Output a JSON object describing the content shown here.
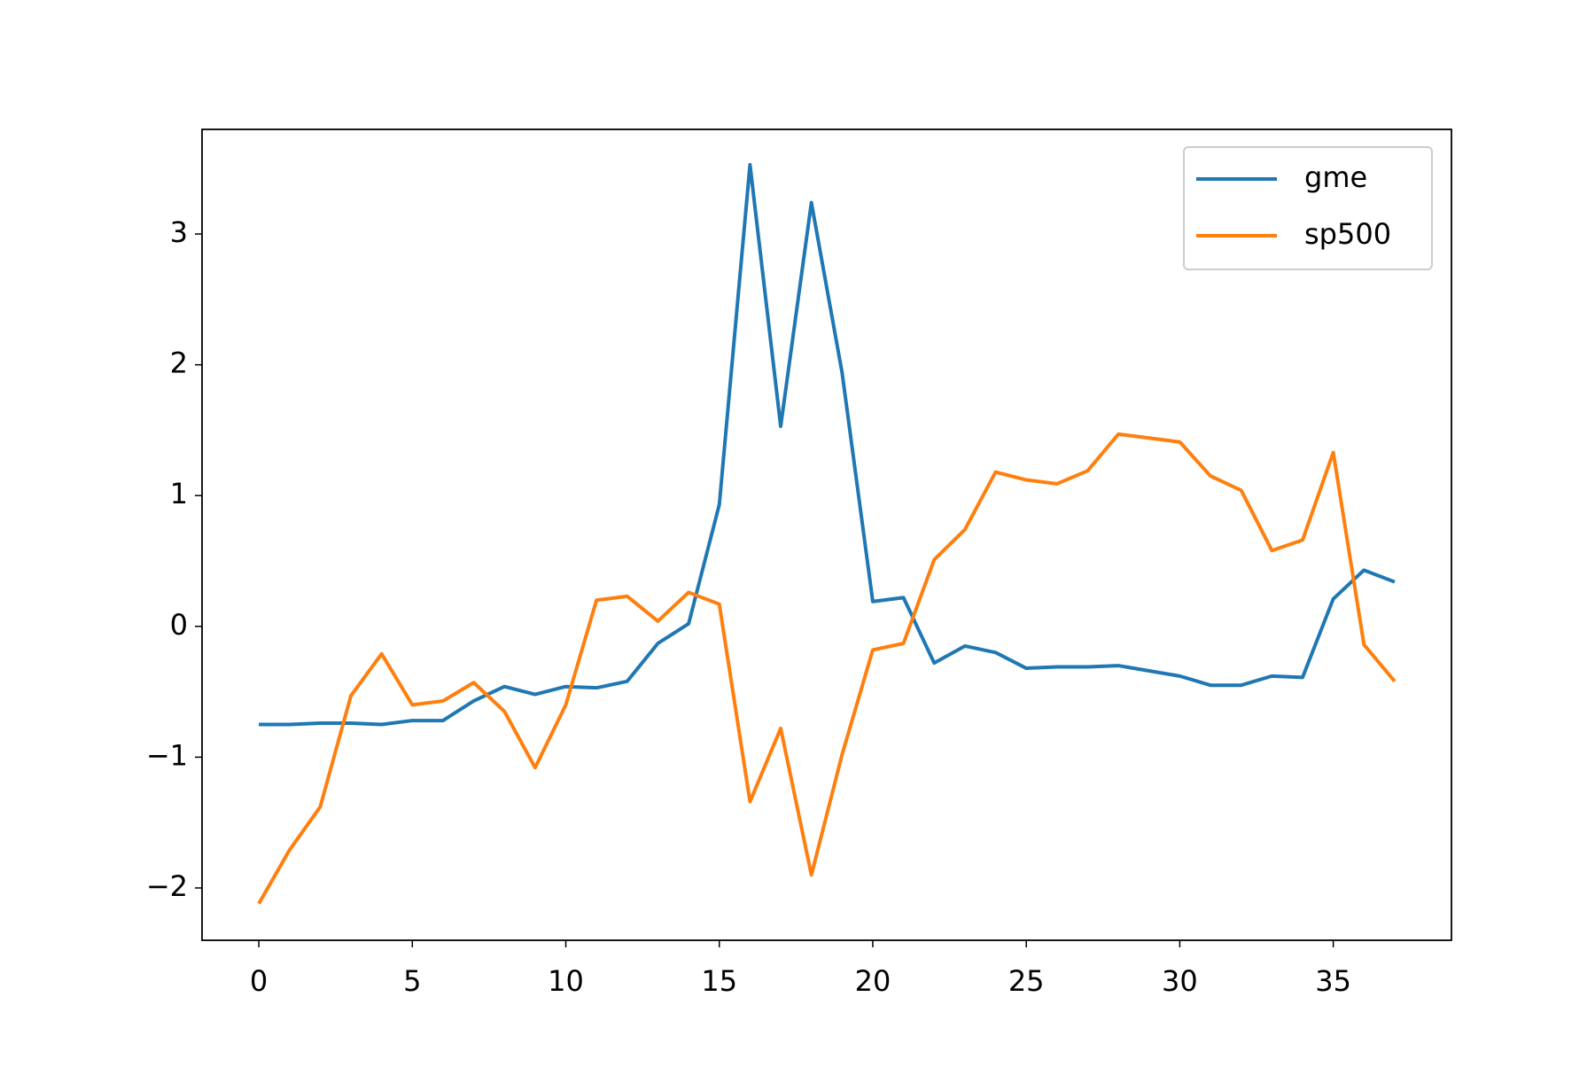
{
  "chart_data": {
    "type": "line",
    "x": [
      0,
      1,
      2,
      3,
      4,
      5,
      6,
      7,
      8,
      9,
      10,
      11,
      12,
      13,
      14,
      15,
      16,
      17,
      18,
      19,
      20,
      21,
      22,
      23,
      24,
      25,
      26,
      27,
      28,
      29,
      30,
      31,
      32,
      33,
      34,
      35,
      36,
      37
    ],
    "series": [
      {
        "name": "gme",
        "color": "#1f77b4",
        "values": [
          -0.75,
          -0.75,
          -0.74,
          -0.74,
          -0.75,
          -0.72,
          -0.72,
          -0.57,
          -0.46,
          -0.52,
          -0.46,
          -0.47,
          -0.42,
          -0.13,
          0.02,
          0.93,
          3.53,
          1.53,
          3.24,
          1.94,
          0.19,
          0.22,
          -0.28,
          -0.15,
          -0.2,
          -0.32,
          -0.31,
          -0.31,
          -0.3,
          -0.34,
          -0.38,
          -0.45,
          -0.45,
          -0.38,
          -0.39,
          0.21,
          0.43,
          0.34
        ]
      },
      {
        "name": "sp500",
        "color": "#ff7f0e",
        "values": [
          -2.12,
          -1.71,
          -1.38,
          -0.53,
          -0.21,
          -0.6,
          -0.57,
          -0.43,
          -0.65,
          -1.08,
          -0.6,
          0.2,
          0.23,
          0.04,
          0.26,
          0.17,
          -1.34,
          -0.78,
          -1.9,
          -0.98,
          -0.18,
          -0.13,
          0.51,
          0.74,
          1.18,
          1.12,
          1.09,
          1.19,
          1.47,
          1.44,
          1.41,
          1.15,
          1.04,
          0.58,
          0.66,
          1.33,
          -0.14,
          -0.42
        ]
      }
    ],
    "xlim": [
      -1.85,
      38.85
    ],
    "xticks": [
      0,
      5,
      10,
      15,
      20,
      25,
      30,
      35
    ],
    "ylim": [
      -2.4,
      3.8
    ],
    "yticks": [
      {
        "value": -2,
        "label": "−2"
      },
      {
        "value": -1,
        "label": "−1"
      },
      0,
      1,
      2,
      3
    ],
    "legend": "upper right"
  }
}
